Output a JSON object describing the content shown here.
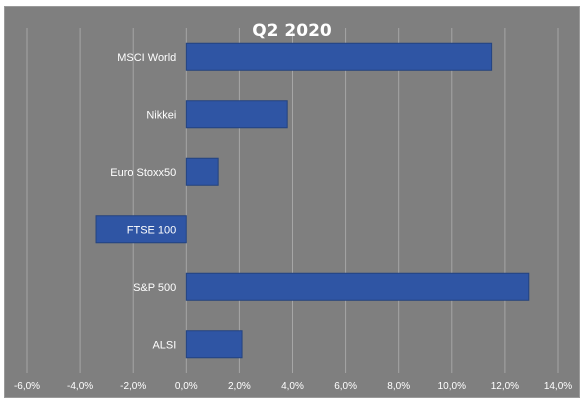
{
  "chart_data": {
    "type": "bar",
    "orientation": "horizontal",
    "title": "Q2 2020",
    "categories": [
      "MSCI World",
      "Nikkei",
      "Euro Stoxx50",
      "FTSE 100",
      "S&P 500",
      "ALSI"
    ],
    "values": [
      11.5,
      3.8,
      1.2,
      -3.4,
      12.9,
      2.1
    ],
    "value_unit": "%",
    "xlim": [
      -6,
      14
    ],
    "x_ticks": [
      -6,
      -4,
      -2,
      0,
      2,
      4,
      6,
      8,
      10,
      12,
      14
    ],
    "x_tick_labels": [
      "-6,0%",
      "-4,0%",
      "-2,0%",
      "0,0%",
      "2,0%",
      "4,0%",
      "6,0%",
      "8,0%",
      "10,0%",
      "12,0%",
      "14,0%"
    ],
    "grid": true,
    "legend": "none",
    "colors": {
      "background": "#7f7f7f",
      "bar": "#2f55a4",
      "gridline": "#a6a6a6",
      "text": "#ffffff"
    }
  }
}
